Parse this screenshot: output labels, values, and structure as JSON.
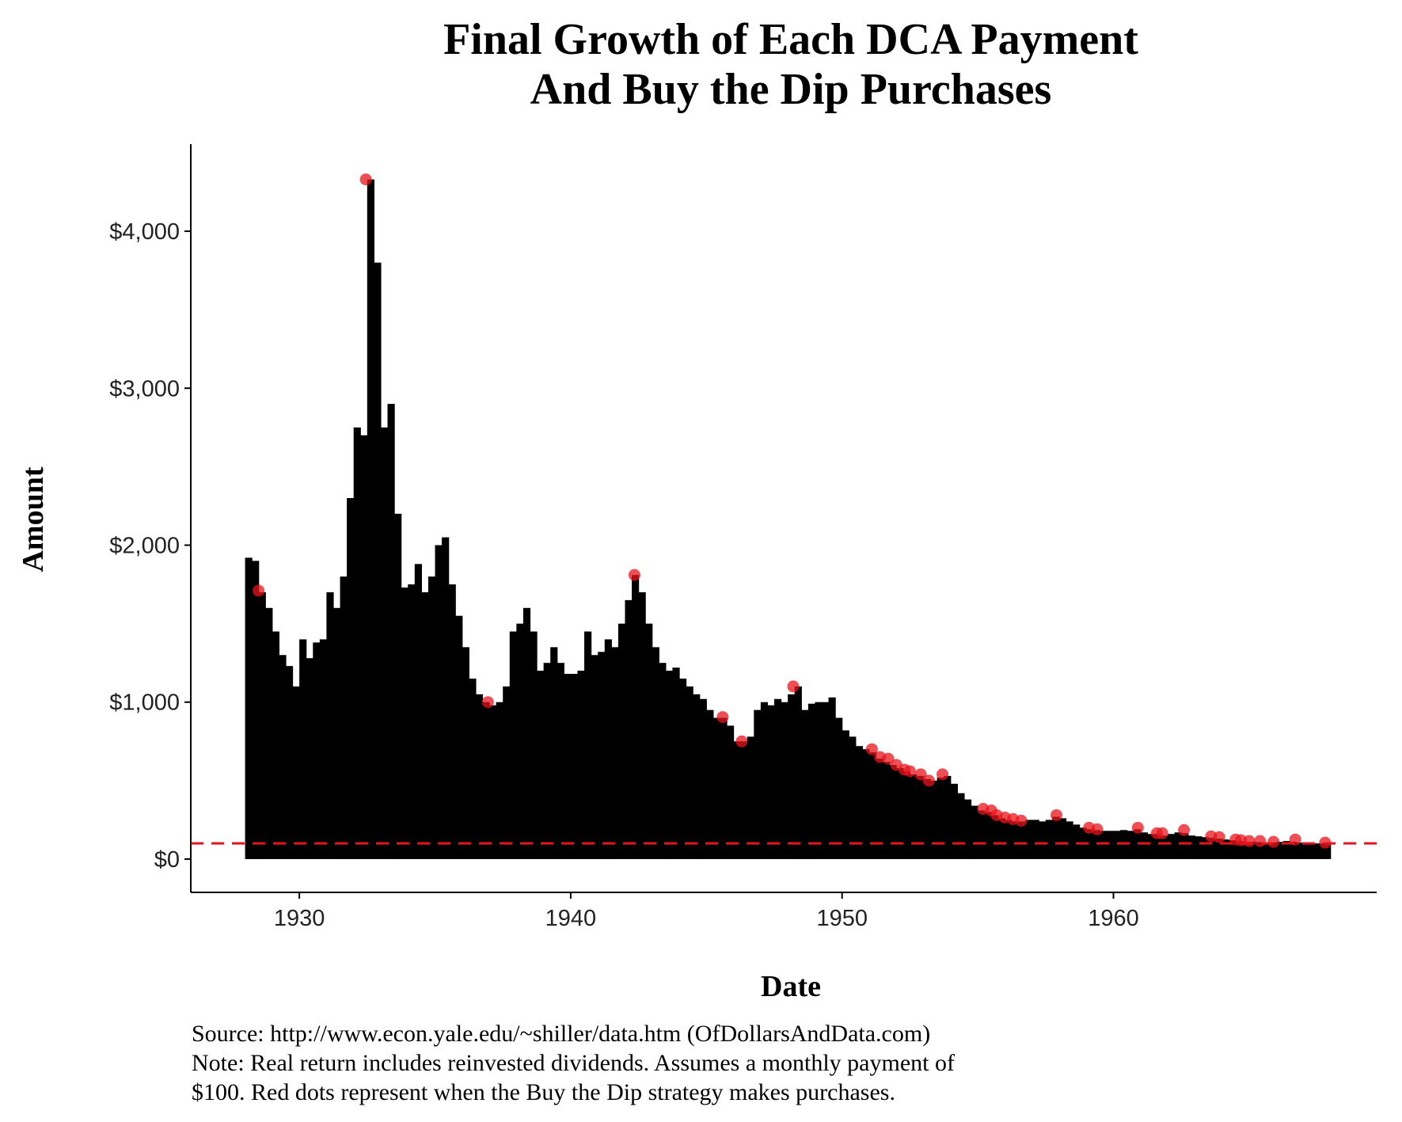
{
  "chart_data": {
    "type": "bar",
    "title": [
      "Final Growth of Each DCA Payment",
      "And Buy the Dip Purchases"
    ],
    "x_label": "Date",
    "y_label": "Amount",
    "caption": [
      "Source:  http://www.econ.yale.edu/~shiller/data.htm (OfDollarsAndData.com)",
      "Note: Real return includes reinvested dividends. Assumes a monthly payment of",
      "$100. Red dots represent when the Buy the Dip strategy makes purchases."
    ],
    "xlim": [
      1926,
      1969.7
    ],
    "xticks": [
      1930,
      1940,
      1950,
      1960
    ],
    "ylim": [
      -212,
      4555
    ],
    "yticks": [
      {
        "value": 0,
        "label": "$0"
      },
      {
        "value": 1000,
        "label": "$1,000"
      },
      {
        "value": 2000,
        "label": "$2,000"
      },
      {
        "value": 3000,
        "label": "$3,000"
      },
      {
        "value": 4000,
        "label": "$4,000"
      }
    ],
    "hline": {
      "value": 100,
      "color": "#e8141c",
      "dashed": true
    },
    "series": [
      {
        "type": "bar",
        "color": "#000000",
        "x": [
          1928,
          1928.25,
          1928.5,
          1928.75,
          1929,
          1929.25,
          1929.5,
          1929.75,
          1930,
          1930.25,
          1930.5,
          1930.75,
          1931,
          1931.25,
          1931.5,
          1931.75,
          1932,
          1932.25,
          1932.5,
          1932.75,
          1933,
          1933.25,
          1933.5,
          1933.75,
          1934,
          1934.25,
          1934.5,
          1934.75,
          1935,
          1935.25,
          1935.5,
          1935.75,
          1936,
          1936.25,
          1936.5,
          1936.75,
          1937,
          1937.25,
          1937.5,
          1937.75,
          1938,
          1938.25,
          1938.5,
          1938.75,
          1939,
          1939.25,
          1939.5,
          1939.75,
          1940,
          1940.25,
          1940.5,
          1940.75,
          1941,
          1941.25,
          1941.5,
          1941.75,
          1942,
          1942.25,
          1942.5,
          1942.75,
          1943,
          1943.25,
          1943.5,
          1943.75,
          1944,
          1944.25,
          1944.5,
          1944.75,
          1945,
          1945.25,
          1945.5,
          1945.75,
          1946,
          1946.25,
          1946.5,
          1946.75,
          1947,
          1947.25,
          1947.5,
          1947.75,
          1948,
          1948.25,
          1948.5,
          1948.75,
          1949,
          1949.25,
          1949.5,
          1949.75,
          1950,
          1950.25,
          1950.5,
          1950.75,
          1951,
          1951.25,
          1951.5,
          1951.75,
          1952,
          1952.25,
          1952.5,
          1952.75,
          1953,
          1953.25,
          1953.5,
          1953.75,
          1954,
          1954.25,
          1954.5,
          1954.75,
          1955,
          1955.25,
          1955.5,
          1955.75,
          1956,
          1956.25,
          1956.5,
          1956.75,
          1957,
          1957.25,
          1957.5,
          1957.75,
          1958,
          1958.25,
          1958.5,
          1958.75,
          1959,
          1959.25,
          1959.5,
          1959.75,
          1960,
          1960.25,
          1960.5,
          1960.75,
          1961,
          1961.25,
          1961.5,
          1961.75,
          1962,
          1962.25,
          1962.5,
          1962.75,
          1963,
          1963.25,
          1963.5,
          1963.75,
          1964,
          1964.25,
          1964.5,
          1964.75,
          1965,
          1965.25,
          1965.5,
          1965.75,
          1966,
          1966.25,
          1966.5,
          1966.75,
          1967,
          1967.25,
          1967.5,
          1967.75
        ],
        "values": [
          1920,
          1900,
          1700,
          1600,
          1450,
          1300,
          1230,
          1100,
          1400,
          1280,
          1380,
          1400,
          1700,
          1600,
          1800,
          2300,
          2750,
          2700,
          4330,
          3800,
          2750,
          2900,
          2200,
          1730,
          1750,
          1880,
          1700,
          1800,
          2000,
          2050,
          1750,
          1550,
          1350,
          1150,
          1050,
          1000,
          980,
          1000,
          1100,
          1450,
          1500,
          1600,
          1450,
          1200,
          1250,
          1350,
          1250,
          1180,
          1180,
          1200,
          1450,
          1300,
          1320,
          1400,
          1350,
          1500,
          1650,
          1810,
          1700,
          1500,
          1350,
          1250,
          1200,
          1220,
          1150,
          1100,
          1050,
          1020,
          950,
          900,
          900,
          850,
          750,
          750,
          780,
          950,
          1000,
          980,
          1020,
          1000,
          1050,
          1100,
          950,
          990,
          1000,
          1000,
          1030,
          900,
          820,
          780,
          720,
          700,
          680,
          640,
          620,
          600,
          580,
          560,
          540,
          530,
          510,
          500,
          520,
          530,
          480,
          420,
          380,
          340,
          310,
          300,
          280,
          260,
          250,
          240,
          240,
          250,
          250,
          240,
          250,
          270,
          260,
          240,
          220,
          200,
          190,
          185,
          180,
          180,
          180,
          185,
          180,
          190,
          170,
          160,
          160,
          150,
          160,
          170,
          165,
          150,
          145,
          140,
          135,
          130,
          125,
          120,
          115,
          110,
          110,
          108,
          105,
          105,
          110,
          115,
          110,
          105,
          100,
          100,
          100,
          100
        ]
      },
      {
        "type": "scatter",
        "color": "#e8141c",
        "x": [
          1928.5,
          1932.45,
          1936.95,
          1942.35,
          1945.6,
          1946.3,
          1948.2,
          1951.1,
          1951.4,
          1951.7,
          1952,
          1952.3,
          1952.5,
          1952.9,
          1953.2,
          1953.7,
          1955.2,
          1955.5,
          1955.7,
          1956,
          1956.3,
          1956.6,
          1957.9,
          1959.1,
          1959.4,
          1960.9,
          1961.6,
          1961.8,
          1962.6,
          1963.6,
          1963.9,
          1964.5,
          1964.7,
          1965,
          1965.4,
          1965.9,
          1966.7,
          1967.8
        ],
        "values": [
          1710,
          4330,
          1000,
          1810,
          905,
          750,
          1100,
          700,
          650,
          640,
          600,
          570,
          560,
          540,
          500,
          540,
          320,
          310,
          280,
          265,
          255,
          245,
          280,
          200,
          190,
          200,
          165,
          165,
          185,
          145,
          140,
          125,
          120,
          115,
          115,
          110,
          125,
          105
        ]
      }
    ]
  }
}
